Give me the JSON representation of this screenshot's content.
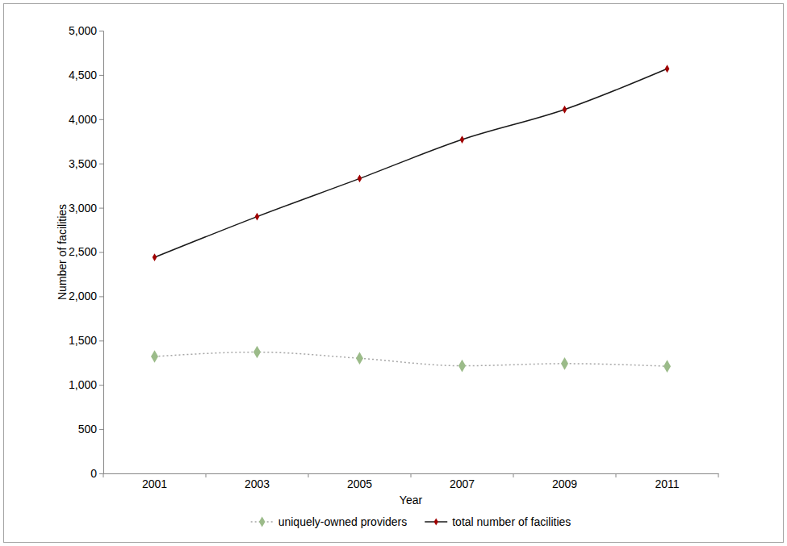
{
  "chart_data": {
    "type": "line",
    "x_label": "Year",
    "y_label": "Number of facilities",
    "categories": [
      "2001",
      "2003",
      "2005",
      "2007",
      "2009",
      "2011"
    ],
    "series": [
      {
        "name": "uniquely-owned providers",
        "color": "#9bbb89",
        "marker": "diamond",
        "line_style": "dotted",
        "values": [
          1320,
          1370,
          1300,
          1215,
          1240,
          1210
        ]
      },
      {
        "name": "total number of facilities",
        "color": "#1a1a1a",
        "marker": "diamond",
        "line_style": "solid",
        "values": [
          2440,
          2900,
          3330,
          3770,
          4110,
          4570
        ]
      }
    ],
    "ylim": [
      0,
      5000
    ],
    "yticks": [
      0,
      500,
      {
        "value": 1000,
        "label": "1,000"
      },
      {
        "value": 1500,
        "label": "1,500"
      },
      {
        "value": 2000,
        "label": "2,000"
      },
      {
        "value": 2500,
        "label": "2,500"
      },
      {
        "value": 3000,
        "label": "3,000"
      },
      {
        "value": 3500,
        "label": "3,500"
      },
      {
        "value": 4000,
        "label": "4,000"
      },
      {
        "value": 4500,
        "label": "4,500"
      },
      {
        "value": 5000,
        "label": "5,000"
      }
    ],
    "grid": false,
    "legend": "bottom"
  }
}
